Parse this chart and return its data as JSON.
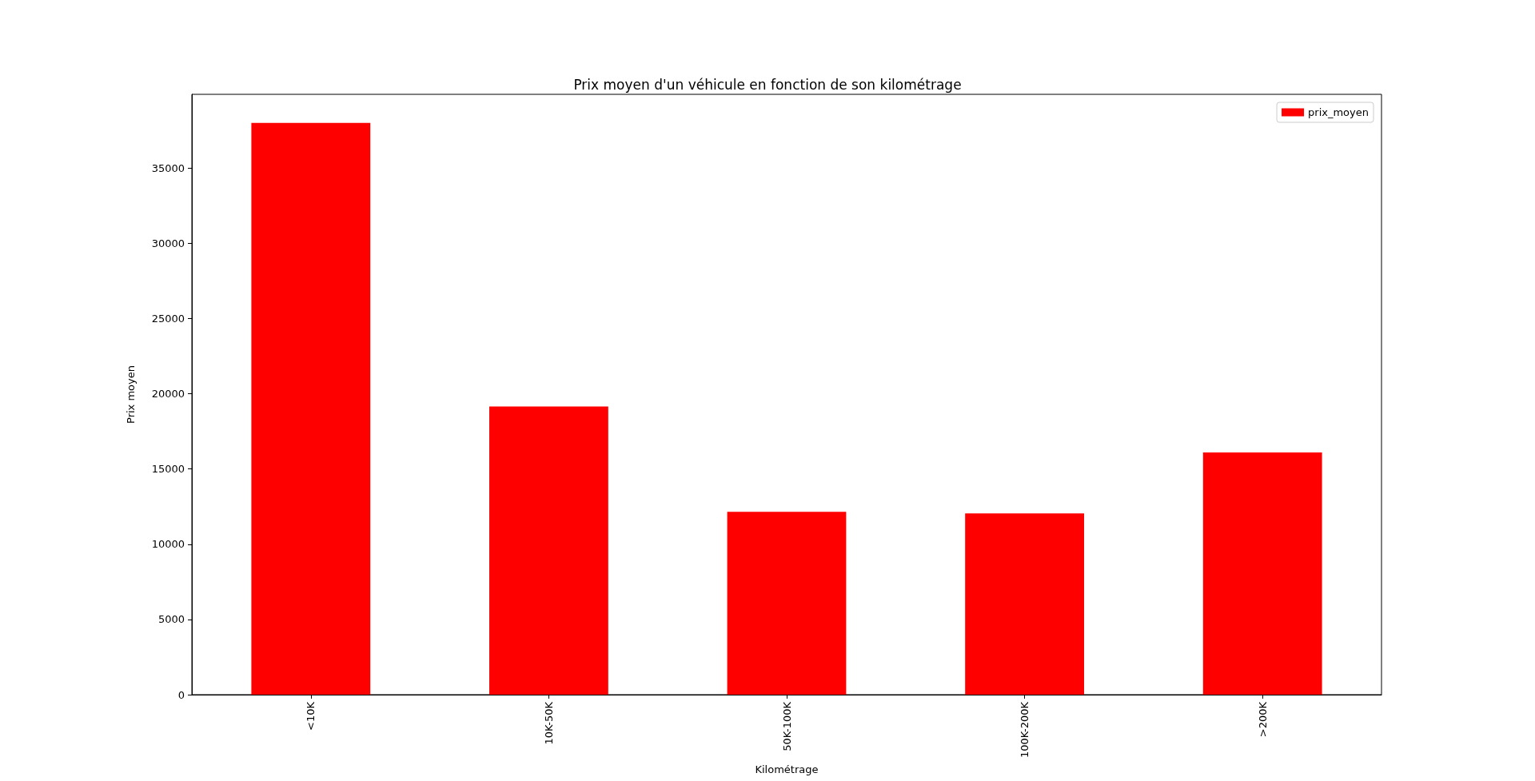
{
  "chart_data": {
    "type": "bar",
    "title": "Prix moyen d'un véhicule en fonction de son kilométrage",
    "xlabel": "Kilométrage",
    "ylabel": "Prix moyen",
    "categories": [
      "<10K",
      "10K-50K",
      "50K-100K",
      "100K-200K",
      ">200K"
    ],
    "series": [
      {
        "name": "prix_moyen",
        "color": "#ff0000",
        "values": [
          38000,
          19150,
          12150,
          12050,
          16100
        ]
      }
    ],
    "ylim": [
      0,
      39900
    ],
    "yticks": [
      0,
      5000,
      10000,
      15000,
      20000,
      25000,
      30000,
      35000
    ],
    "grid": false,
    "legend": "top right"
  }
}
